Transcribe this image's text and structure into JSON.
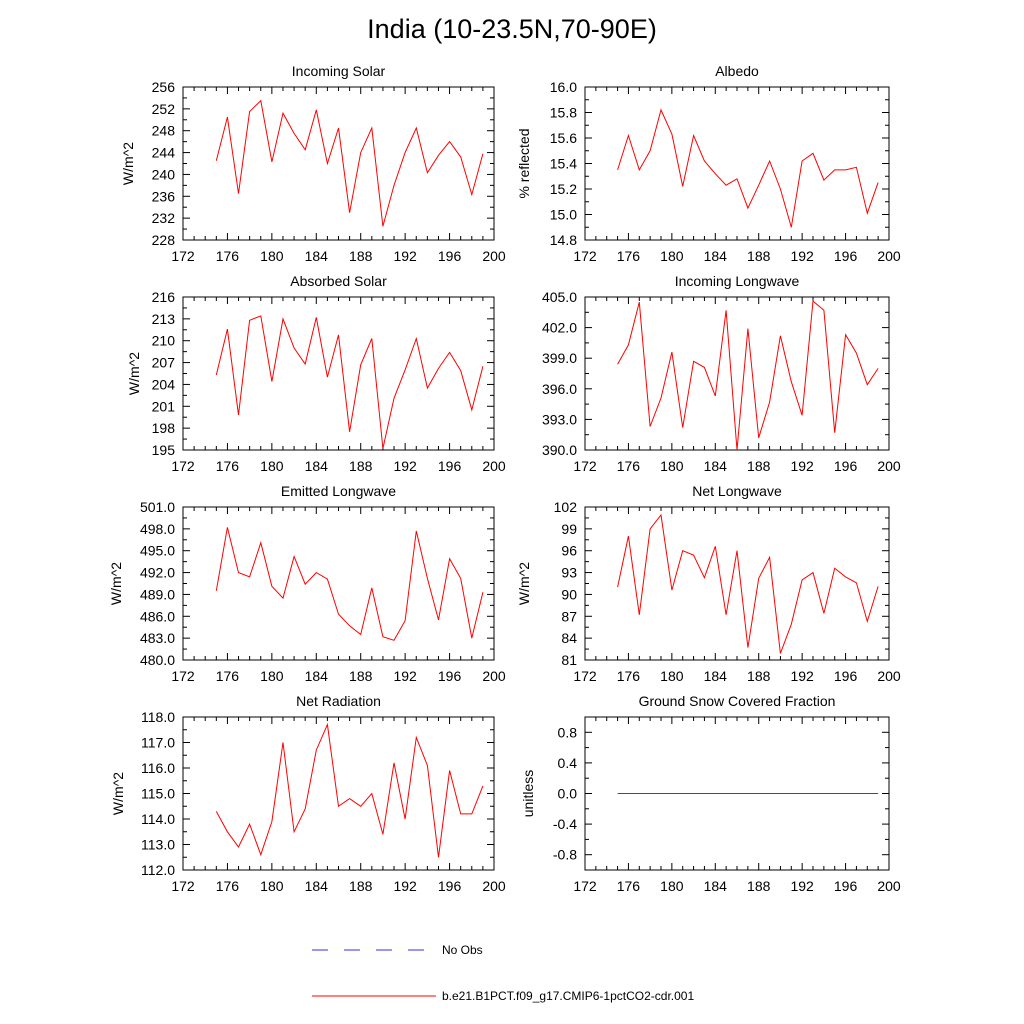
{
  "title": "India (10-23.5N,70-90E)",
  "colors": {
    "model_line": "#ff0000",
    "obs_line": "#3333cc",
    "axis": "#000000"
  },
  "legend": {
    "items": [
      {
        "label": "No Obs",
        "style": "dashed",
        "color": "#3333cc"
      },
      {
        "label": "b.e21.B1PCT.f09_g17.CMIP6-1pctCO2-cdr.001",
        "style": "solid",
        "color": "#ff0000"
      }
    ]
  },
  "chart_data": [
    {
      "type": "line",
      "title": "Incoming Solar",
      "ylabel": "W/m^2",
      "xlim": [
        172,
        200
      ],
      "ylim": [
        228,
        256
      ],
      "xticks": [
        "172",
        "176",
        "180",
        "184",
        "188",
        "192",
        "196",
        "200"
      ],
      "yticks": [
        "228",
        "232",
        "236",
        "240",
        "244",
        "248",
        "252",
        "256"
      ],
      "x": [
        175,
        176,
        177,
        178,
        179,
        180,
        181,
        182,
        183,
        184,
        185,
        186,
        187,
        188,
        189,
        190,
        191,
        192,
        193,
        194,
        195,
        196,
        197,
        198,
        199
      ],
      "series": [
        {
          "name": "b.e21.B1PCT.f09_g17.CMIP6-1pctCO2-cdr.001",
          "values": [
            242.5,
            250.5,
            236.5,
            251.5,
            253.5,
            242.3,
            251.2,
            247.5,
            244.5,
            251.8,
            242.0,
            248.5,
            233.0,
            244.0,
            248.5,
            230.5,
            238.0,
            244.0,
            248.5,
            240.3,
            243.5,
            246.0,
            243.2,
            236.3,
            243.8
          ]
        }
      ]
    },
    {
      "type": "line",
      "title": "Albedo",
      "ylabel": "% reflected",
      "xlim": [
        172,
        200
      ],
      "ylim": [
        14.8,
        16.0
      ],
      "xticks": [
        "172",
        "176",
        "180",
        "184",
        "188",
        "192",
        "196",
        "200"
      ],
      "yticks": [
        "14.8",
        "15.0",
        "15.2",
        "15.4",
        "15.6",
        "15.8",
        "16.0"
      ],
      "x": [
        175,
        176,
        177,
        178,
        179,
        180,
        181,
        182,
        183,
        184,
        185,
        186,
        187,
        188,
        189,
        190,
        191,
        192,
        193,
        194,
        195,
        196,
        197,
        198,
        199
      ],
      "series": [
        {
          "name": "b.e21.B1PCT.f09_g17.CMIP6-1pctCO2-cdr.001",
          "values": [
            15.35,
            15.62,
            15.35,
            15.5,
            15.82,
            15.63,
            15.22,
            15.62,
            15.42,
            15.32,
            15.23,
            15.28,
            15.05,
            15.23,
            15.42,
            15.2,
            14.9,
            15.42,
            15.48,
            15.27,
            15.35,
            15.35,
            15.37,
            15.01,
            15.25
          ]
        }
      ]
    },
    {
      "type": "line",
      "title": "Absorbed Solar",
      "ylabel": "W/m^2",
      "xlim": [
        172,
        200
      ],
      "ylim": [
        195,
        216
      ],
      "xticks": [
        "172",
        "176",
        "180",
        "184",
        "188",
        "192",
        "196",
        "200"
      ],
      "yticks": [
        "195",
        "198",
        "201",
        "204",
        "207",
        "210",
        "213",
        "216"
      ],
      "x": [
        175,
        176,
        177,
        178,
        179,
        180,
        181,
        182,
        183,
        184,
        185,
        186,
        187,
        188,
        189,
        190,
        191,
        192,
        193,
        194,
        195,
        196,
        197,
        198,
        199
      ],
      "series": [
        {
          "name": "b.e21.B1PCT.f09_g17.CMIP6-1pctCO2-cdr.001",
          "values": [
            205.3,
            211.6,
            199.8,
            212.8,
            213.4,
            204.4,
            213.0,
            209.0,
            206.8,
            213.2,
            205.0,
            210.8,
            197.5,
            206.7,
            210.3,
            195.2,
            202.1,
            206.0,
            210.3,
            203.5,
            206.2,
            208.4,
            205.9,
            200.5,
            206.5
          ]
        }
      ]
    },
    {
      "type": "line",
      "title": "Incoming Longwave",
      "xlim": [
        172,
        200
      ],
      "ylim": [
        390.0,
        405.0
      ],
      "xticks": [
        "172",
        "176",
        "180",
        "184",
        "188",
        "192",
        "196",
        "200"
      ],
      "yticks": [
        "390.0",
        "393.0",
        "396.0",
        "399.0",
        "402.0",
        "405.0"
      ],
      "x": [
        175,
        176,
        177,
        178,
        179,
        180,
        181,
        182,
        183,
        184,
        185,
        186,
        187,
        188,
        189,
        190,
        191,
        192,
        193,
        194,
        195,
        196,
        197,
        198,
        199
      ],
      "series": [
        {
          "name": "b.e21.B1PCT.f09_g17.CMIP6-1pctCO2-cdr.001",
          "values": [
            398.4,
            400.3,
            404.5,
            392.3,
            395.1,
            399.6,
            392.2,
            398.7,
            398.1,
            395.3,
            403.7,
            390.0,
            401.9,
            391.2,
            394.7,
            401.2,
            396.7,
            393.4,
            404.6,
            403.7,
            391.7,
            401.3,
            399.5,
            396.4,
            398.0
          ]
        }
      ]
    },
    {
      "type": "line",
      "title": "Emitted Longwave",
      "ylabel": "W/m^2",
      "xlim": [
        172,
        200
      ],
      "ylim": [
        480.0,
        501.0
      ],
      "xticks": [
        "172",
        "176",
        "180",
        "184",
        "188",
        "192",
        "196",
        "200"
      ],
      "yticks": [
        "480.0",
        "483.0",
        "486.0",
        "489.0",
        "492.0",
        "495.0",
        "498.0",
        "501.0"
      ],
      "x": [
        175,
        176,
        177,
        178,
        179,
        180,
        181,
        182,
        183,
        184,
        185,
        186,
        187,
        188,
        189,
        190,
        191,
        192,
        193,
        194,
        195,
        196,
        197,
        198,
        199
      ],
      "series": [
        {
          "name": "b.e21.B1PCT.f09_g17.CMIP6-1pctCO2-cdr.001",
          "values": [
            489.5,
            498.2,
            492.0,
            491.4,
            496.1,
            490.1,
            488.5,
            494.2,
            490.4,
            492.0,
            491.1,
            486.3,
            484.7,
            483.5,
            489.9,
            483.2,
            482.7,
            485.4,
            497.7,
            491.2,
            485.5,
            493.9,
            491.2,
            483.0,
            489.3
          ]
        }
      ]
    },
    {
      "type": "line",
      "title": "Net Longwave",
      "ylabel": "W/m^2",
      "xlim": [
        172,
        200
      ],
      "ylim": [
        81,
        102
      ],
      "xticks": [
        "172",
        "176",
        "180",
        "184",
        "188",
        "192",
        "196",
        "200"
      ],
      "yticks": [
        "81",
        "84",
        "87",
        "90",
        "93",
        "96",
        "99",
        "102"
      ],
      "x": [
        175,
        176,
        177,
        178,
        179,
        180,
        181,
        182,
        183,
        184,
        185,
        186,
        187,
        188,
        189,
        190,
        191,
        192,
        193,
        194,
        195,
        196,
        197,
        198,
        199
      ],
      "series": [
        {
          "name": "b.e21.B1PCT.f09_g17.CMIP6-1pctCO2-cdr.001",
          "values": [
            91.0,
            98.0,
            87.2,
            99.0,
            100.9,
            90.6,
            96.0,
            95.4,
            92.3,
            96.6,
            87.2,
            96.0,
            82.7,
            92.2,
            95.1,
            81.9,
            85.9,
            92.0,
            93.0,
            87.4,
            93.6,
            92.4,
            91.6,
            86.3,
            91.1
          ]
        }
      ]
    },
    {
      "type": "line",
      "title": "Net Radiation",
      "ylabel": "W/m^2",
      "xlim": [
        172,
        200
      ],
      "ylim": [
        112.0,
        118.0
      ],
      "xticks": [
        "172",
        "176",
        "180",
        "184",
        "188",
        "192",
        "196",
        "200"
      ],
      "yticks": [
        "112.0",
        "113.0",
        "114.0",
        "115.0",
        "116.0",
        "117.0",
        "118.0"
      ],
      "x": [
        175,
        176,
        177,
        178,
        179,
        180,
        181,
        182,
        183,
        184,
        185,
        186,
        187,
        188,
        189,
        190,
        191,
        192,
        193,
        194,
        195,
        196,
        197,
        198,
        199
      ],
      "series": [
        {
          "name": "b.e21.B1PCT.f09_g17.CMIP6-1pctCO2-cdr.001",
          "values": [
            114.3,
            113.5,
            112.9,
            113.8,
            112.6,
            113.9,
            117.0,
            113.5,
            114.4,
            116.7,
            117.7,
            114.5,
            114.8,
            114.5,
            115.0,
            113.4,
            116.2,
            114.0,
            117.2,
            116.1,
            112.5,
            115.9,
            114.2,
            114.2,
            115.3
          ]
        }
      ]
    },
    {
      "type": "line",
      "title": "Ground Snow Covered Fraction",
      "ylabel": "unitless",
      "xlim": [
        172,
        200
      ],
      "ylim": [
        -1.0,
        1.0
      ],
      "xticks": [
        "172",
        "176",
        "180",
        "184",
        "188",
        "192",
        "196",
        "200"
      ],
      "yticks": [
        "-0.8",
        "-0.4",
        "0.0",
        "0.4",
        "0.8"
      ],
      "ytick_values": [
        -0.8,
        -0.4,
        0.0,
        0.4,
        0.8
      ],
      "x": [
        175,
        176,
        177,
        178,
        179,
        180,
        181,
        182,
        183,
        184,
        185,
        186,
        187,
        188,
        189,
        190,
        191,
        192,
        193,
        194,
        195,
        196,
        197,
        198,
        199
      ],
      "series": [
        {
          "name": "b.e21.B1PCT.f09_g17.CMIP6-1pctCO2-cdr.001",
          "values": [
            0,
            0,
            0,
            0,
            0,
            0,
            0,
            0,
            0,
            0,
            0,
            0,
            0,
            0,
            0,
            0,
            0,
            0,
            0,
            0,
            0,
            0,
            0,
            0,
            0
          ]
        }
      ]
    }
  ]
}
